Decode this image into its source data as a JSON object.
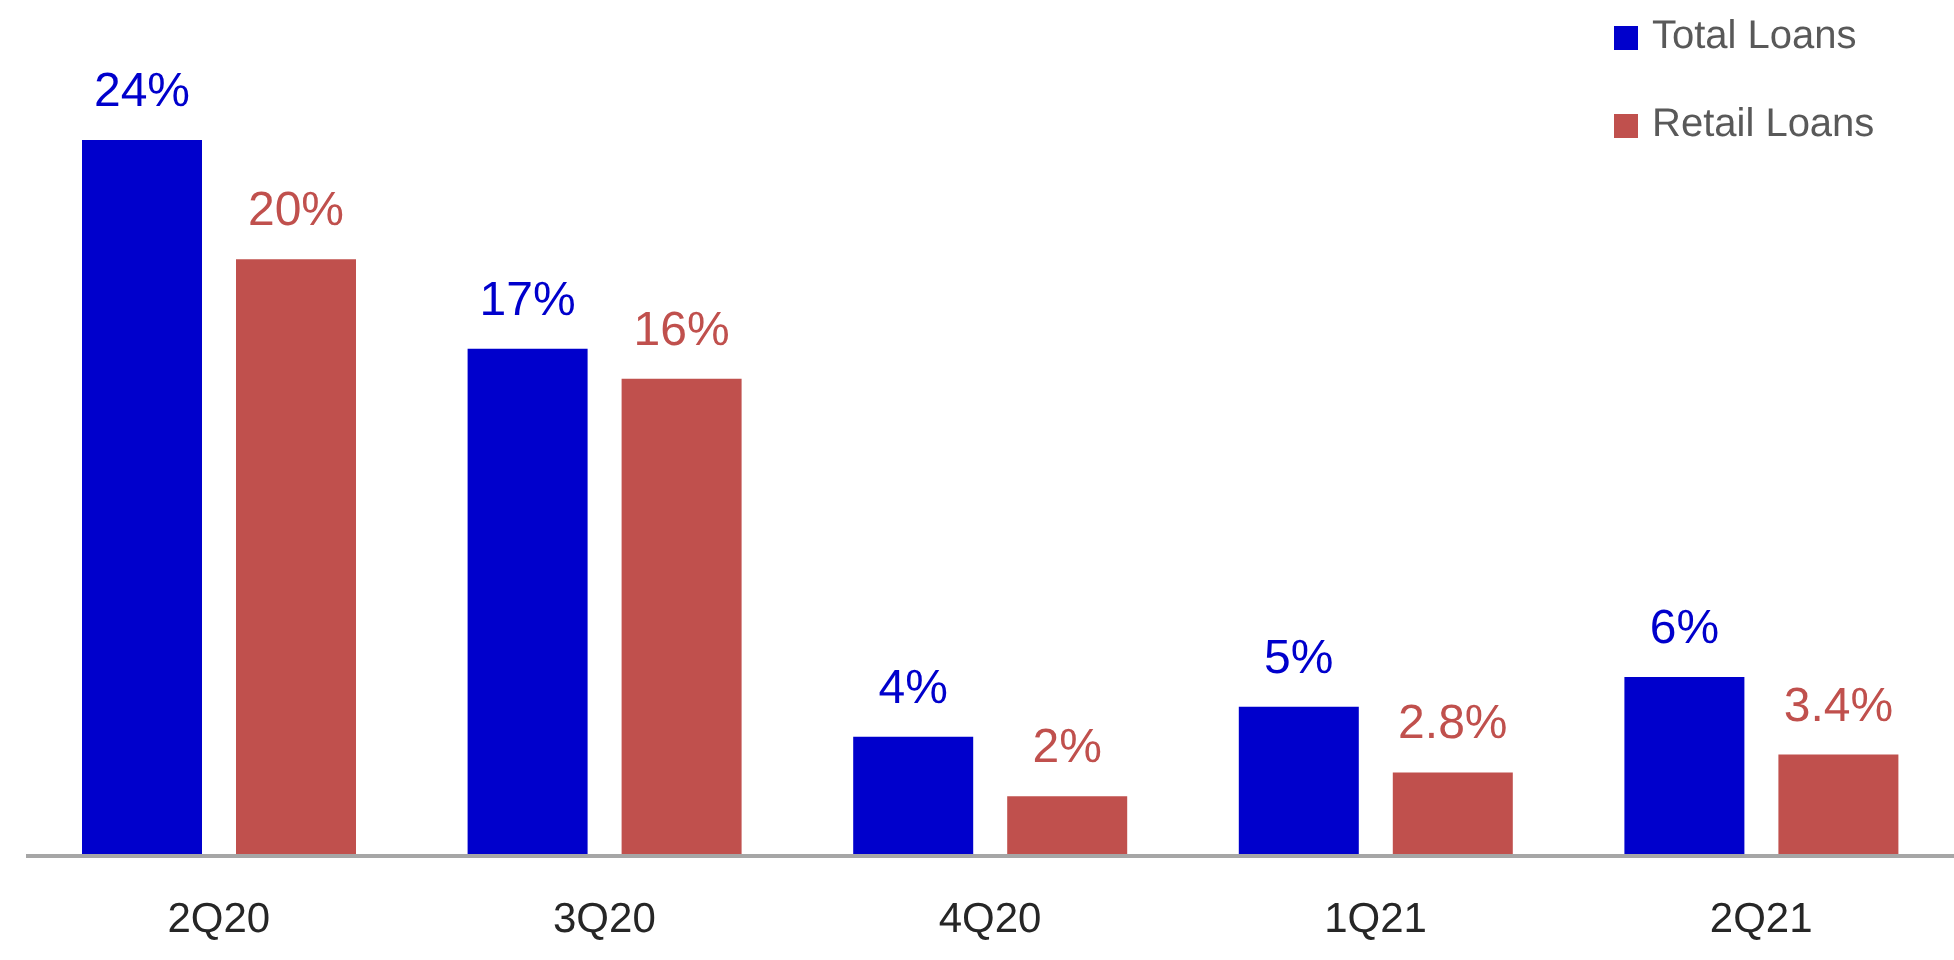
{
  "chart_data": {
    "type": "bar",
    "categories": [
      "2Q20",
      "3Q20",
      "4Q20",
      "1Q21",
      "2Q21"
    ],
    "series": [
      {
        "name": "Total Loans",
        "color": "#0000cc",
        "values": [
          24,
          17,
          4,
          5,
          6
        ],
        "value_labels": [
          "24%",
          "17%",
          "4%",
          "5%",
          "6%"
        ]
      },
      {
        "name": "Retail Loans",
        "color": "#c0504d",
        "values": [
          20,
          16,
          2,
          2.8,
          3.4
        ],
        "value_labels": [
          "20%",
          "16%",
          "2%",
          "2.8%",
          "3.4%"
        ]
      }
    ],
    "legend": "top right",
    "tick_labels": "x"
  }
}
